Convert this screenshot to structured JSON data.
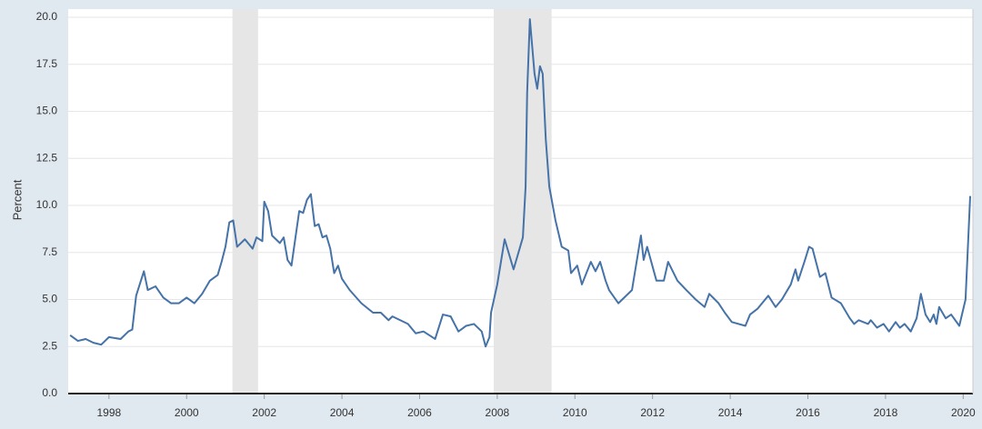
{
  "chart_data": {
    "type": "line",
    "y_label": "Percent",
    "xlim": [
      1996.95,
      2020.25
    ],
    "ylim": [
      0,
      20
    ],
    "xticks": [
      1998,
      2000,
      2002,
      2004,
      2006,
      2008,
      2010,
      2012,
      2014,
      2016,
      2018,
      2020
    ],
    "yticks": [
      {
        "value": 0,
        "label": "0.0"
      },
      2.5,
      {
        "value": 5,
        "label": "5.0"
      },
      7.5,
      {
        "value": 10,
        "label": "10.0"
      },
      12.5,
      {
        "value": 15,
        "label": "15.0"
      },
      17.5,
      {
        "value": 20,
        "label": "20.0"
      }
    ],
    "grid": true,
    "shade_color": "#e6e6e6",
    "recessions": [
      [
        2001.18,
        2001.84
      ],
      [
        2007.91,
        2009.4
      ]
    ],
    "series": [
      {
        "name": "Percent",
        "color": "#4572a7",
        "x": [
          1997.0,
          1997.2,
          1997.4,
          1997.6,
          1997.8,
          1998.0,
          1998.3,
          1998.5,
          1998.6,
          1998.7,
          1998.9,
          1999.0,
          1999.2,
          1999.4,
          1999.6,
          1999.8,
          2000.0,
          2000.2,
          2000.4,
          2000.6,
          2000.8,
          2000.9,
          2001.0,
          2001.1,
          2001.2,
          2001.3,
          2001.5,
          2001.7,
          2001.8,
          2001.95,
          2002.0,
          2002.1,
          2002.2,
          2002.4,
          2002.5,
          2002.6,
          2002.7,
          2002.9,
          2003.0,
          2003.1,
          2003.2,
          2003.3,
          2003.4,
          2003.5,
          2003.6,
          2003.7,
          2003.8,
          2003.9,
          2004.0,
          2004.2,
          2004.5,
          2004.8,
          2005.0,
          2005.2,
          2005.3,
          2005.5,
          2005.7,
          2005.9,
          2006.1,
          2006.4,
          2006.6,
          2006.8,
          2007.0,
          2007.2,
          2007.4,
          2007.6,
          2007.7,
          2007.8,
          2007.84,
          2008.0,
          2008.19,
          2008.42,
          2008.66,
          2008.73,
          2008.77,
          2008.84,
          2008.96,
          2009.03,
          2009.1,
          2009.17,
          2009.25,
          2009.34,
          2009.5,
          2009.66,
          2009.83,
          2009.9,
          2010.06,
          2010.18,
          2010.41,
          2010.53,
          2010.65,
          2010.79,
          2010.88,
          2011.12,
          2011.47,
          2011.7,
          2011.77,
          2011.86,
          2012.1,
          2012.29,
          2012.4,
          2012.64,
          2012.87,
          2013.11,
          2013.34,
          2013.46,
          2013.7,
          2013.86,
          2014.04,
          2014.39,
          2014.51,
          2014.7,
          2014.98,
          2015.17,
          2015.33,
          2015.56,
          2015.68,
          2015.75,
          2015.91,
          2016.03,
          2016.12,
          2016.31,
          2016.45,
          2016.61,
          2016.85,
          2017.08,
          2017.19,
          2017.31,
          2017.55,
          2017.62,
          2017.78,
          2017.95,
          2018.09,
          2018.26,
          2018.37,
          2018.49,
          2018.65,
          2018.8,
          2018.91,
          2019.03,
          2019.15,
          2019.24,
          2019.31,
          2019.38,
          2019.55,
          2019.69,
          2019.9,
          2020.06,
          2020.18
        ],
        "values": [
          3.1,
          2.8,
          2.9,
          2.7,
          2.6,
          3.0,
          2.9,
          3.3,
          3.4,
          5.2,
          6.5,
          5.5,
          5.7,
          5.1,
          4.8,
          4.8,
          5.1,
          4.8,
          5.3,
          6.0,
          6.3,
          7.0,
          7.8,
          9.1,
          9.2,
          7.8,
          8.2,
          7.7,
          8.3,
          8.1,
          10.2,
          9.7,
          8.4,
          8.0,
          8.3,
          7.1,
          6.8,
          9.7,
          9.6,
          10.3,
          10.6,
          8.9,
          9.0,
          8.3,
          8.4,
          7.7,
          6.4,
          6.8,
          6.1,
          5.5,
          4.8,
          4.3,
          4.3,
          3.9,
          4.1,
          3.9,
          3.7,
          3.2,
          3.3,
          2.9,
          4.2,
          4.1,
          3.3,
          3.6,
          3.7,
          3.3,
          2.5,
          3.0,
          4.3,
          5.8,
          8.2,
          6.6,
          8.3,
          11.0,
          16.0,
          19.9,
          17.0,
          16.2,
          17.4,
          17.0,
          13.5,
          11.0,
          9.2,
          7.8,
          7.6,
          6.4,
          6.8,
          5.8,
          7.0,
          6.5,
          7.0,
          6.0,
          5.5,
          4.8,
          5.5,
          8.4,
          7.1,
          7.8,
          6.0,
          6.0,
          7.0,
          6.0,
          5.5,
          5.0,
          4.6,
          5.3,
          4.8,
          4.3,
          3.8,
          3.6,
          4.2,
          4.5,
          5.2,
          4.6,
          5.0,
          5.8,
          6.6,
          6.0,
          7.0,
          7.8,
          7.7,
          6.2,
          6.4,
          5.1,
          4.8,
          4.0,
          3.7,
          3.9,
          3.7,
          3.9,
          3.5,
          3.7,
          3.3,
          3.8,
          3.5,
          3.7,
          3.3,
          4.0,
          5.3,
          4.2,
          3.8,
          4.2,
          3.7,
          4.6,
          4.0,
          4.2,
          3.6,
          5.0,
          10.5
        ]
      }
    ]
  }
}
